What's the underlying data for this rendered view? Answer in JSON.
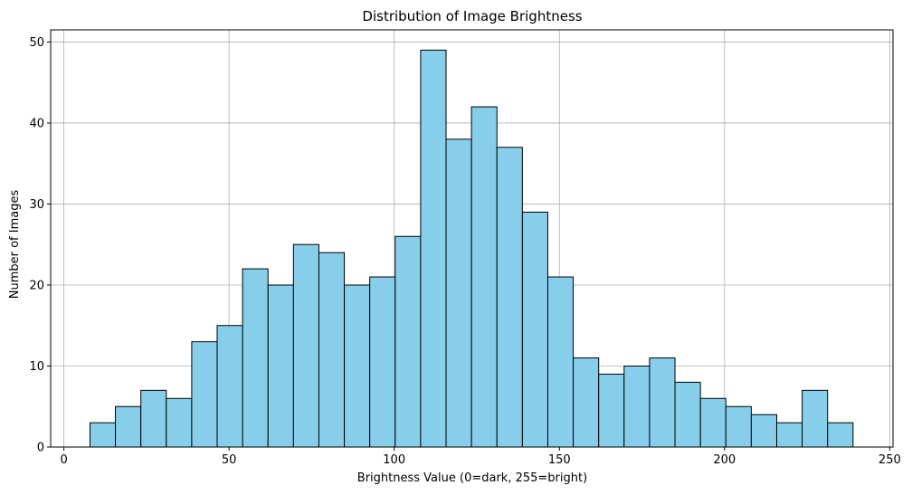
{
  "chart_data": {
    "type": "bar",
    "subtype": "histogram",
    "title": "Distribution of Image Brightness",
    "xlabel": "Brightness Value (0=dark, 255=bright)",
    "ylabel": "Number of Images",
    "xlim": [
      -4,
      251
    ],
    "ylim": [
      0,
      51.5
    ],
    "xticks": [
      0,
      50,
      100,
      150,
      200,
      250
    ],
    "yticks": [
      0,
      10,
      20,
      30,
      40,
      50
    ],
    "grid": true,
    "bar_color": "#87ceeb",
    "edge_color": "#000000",
    "bin_edges": [
      7.9,
      15.6,
      23.3,
      31.0,
      38.7,
      46.4,
      54.1,
      61.8,
      69.5,
      77.2,
      84.9,
      92.6,
      100.3,
      108.0,
      115.7,
      123.4,
      131.1,
      138.8,
      146.5,
      154.2,
      161.9,
      169.6,
      177.3,
      185.0,
      192.7,
      200.4,
      208.1,
      215.8,
      223.5,
      231.2,
      238.9
    ],
    "values": [
      3,
      5,
      7,
      6,
      13,
      15,
      22,
      20,
      25,
      24,
      20,
      21,
      26,
      49,
      38,
      42,
      37,
      29,
      21,
      11,
      9,
      10,
      11,
      8,
      6,
      5,
      4,
      3,
      7,
      3
    ]
  }
}
